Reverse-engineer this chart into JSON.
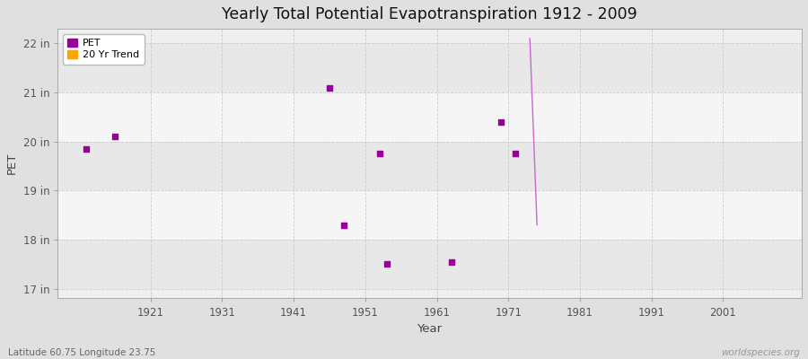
{
  "title": "Yearly Total Potential Evapotranspiration 1912 - 2009",
  "xlabel": "Year",
  "ylabel": "PET",
  "subtitle_left": "Latitude 60.75 Longitude 23.75",
  "subtitle_right": "worldspecies.org",
  "ylim": [
    16.8,
    22.3
  ],
  "xlim": [
    1908,
    2012
  ],
  "yticks": [
    17,
    18,
    19,
    20,
    21,
    22
  ],
  "ytick_labels": [
    "17 in",
    "18 in",
    "19 in",
    "20 in",
    "21 in",
    "22 in"
  ],
  "xticks": [
    1921,
    1931,
    1941,
    1951,
    1961,
    1971,
    1981,
    1991,
    2001
  ],
  "background_color": "#e0e0e0",
  "plot_background_color": "#efefef",
  "band_color_light": "#f5f5f5",
  "band_color_dark": "#e8e8e8",
  "grid_color": "#cccccc",
  "pet_color": "#990099",
  "trend_color": "#cc66cc",
  "pet_marker": "s",
  "pet_marker_size": 4,
  "pet_data": [
    [
      1912,
      19.85
    ],
    [
      1916,
      20.1
    ],
    [
      1946,
      21.1
    ],
    [
      1948,
      18.3
    ],
    [
      1953,
      19.75
    ],
    [
      1954,
      17.5
    ],
    [
      1963,
      17.55
    ],
    [
      1970,
      20.4
    ],
    [
      1972,
      19.75
    ]
  ],
  "trend_data": [
    [
      1974,
      22.1
    ],
    [
      1975,
      18.3
    ]
  ],
  "figsize": [
    9.0,
    4.0
  ],
  "dpi": 100
}
